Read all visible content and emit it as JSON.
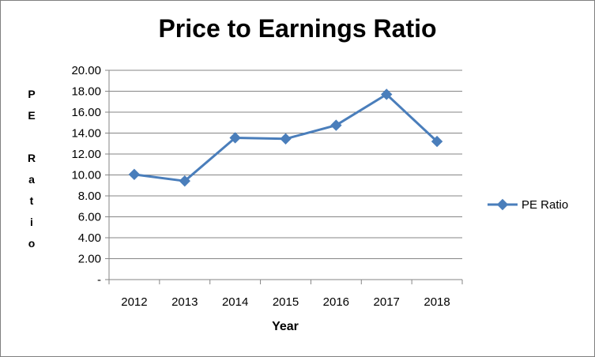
{
  "chart_data": {
    "type": "line",
    "title": "Price to Earnings Ratio",
    "xlabel": "Year",
    "ylabel": "P\nE\n\nR\na\nt\ni\no",
    "categories": [
      "2012",
      "2013",
      "2014",
      "2015",
      "2016",
      "2017",
      "2018"
    ],
    "series": [
      {
        "name": "PE Ratio",
        "values": [
          10.05,
          9.42,
          13.55,
          13.45,
          14.75,
          17.7,
          13.2
        ],
        "color": "#4a7ebb"
      }
    ],
    "ylim": [
      0,
      20
    ],
    "yticks": [
      0,
      2,
      4,
      6,
      8,
      10,
      12,
      14,
      16,
      18,
      20
    ],
    "ytick_labels": [
      "-",
      "2.00",
      "4.00",
      "6.00",
      "8.00",
      "10.00",
      "12.00",
      "14.00",
      "16.00",
      "18.00",
      "20.00"
    ],
    "grid": true,
    "legend": "right",
    "marker": "diamond"
  }
}
